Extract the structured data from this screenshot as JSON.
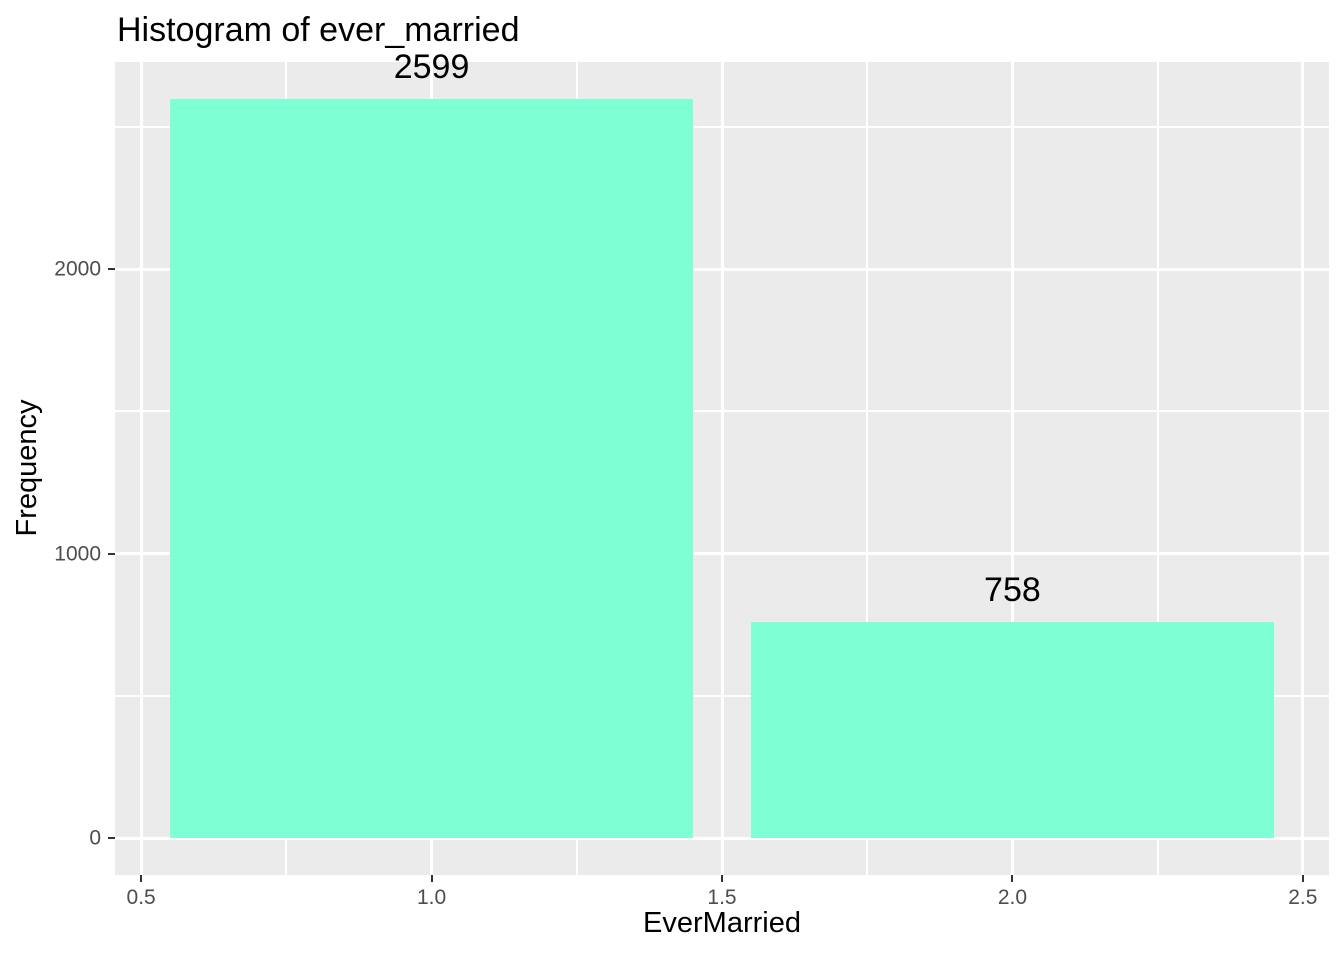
{
  "chart_data": {
    "type": "bar",
    "style": "ggplot2-histogram",
    "title": "Histogram of ever_married",
    "xlabel": "EverMarried",
    "ylabel": "Frequency",
    "bars": [
      {
        "x_start": 0.55,
        "x_end": 1.45,
        "value": 2599,
        "label": "2599"
      },
      {
        "x_start": 1.55,
        "x_end": 2.45,
        "value": 758,
        "label": "758"
      }
    ],
    "xlim": [
      0.455,
      2.545
    ],
    "ylim": [
      -129.95,
      2728.95
    ],
    "x_ticks": [
      {
        "v": 0.5,
        "label": "0.5"
      },
      {
        "v": 1.0,
        "label": "1.0"
      },
      {
        "v": 1.5,
        "label": "1.5"
      },
      {
        "v": 2.0,
        "label": "2.0"
      },
      {
        "v": 2.5,
        "label": "2.5"
      }
    ],
    "y_ticks": [
      {
        "v": 0,
        "label": "0"
      },
      {
        "v": 1000,
        "label": "1000"
      },
      {
        "v": 2000,
        "label": "2000"
      }
    ],
    "x_minor_ticks": [
      0.75,
      1.25,
      1.75,
      2.25
    ],
    "y_minor_ticks": [
      500,
      1500,
      2500
    ],
    "grid": true,
    "legend_position": "none",
    "colors": {
      "bar_fill": "#7FFFD4",
      "panel_background": "#EBEBEB",
      "gridline": "#FFFFFF",
      "tick_label": "#4D4D4D",
      "tick_mark": "#333333",
      "text": "#000000",
      "page_background": "#FFFFFF"
    }
  }
}
